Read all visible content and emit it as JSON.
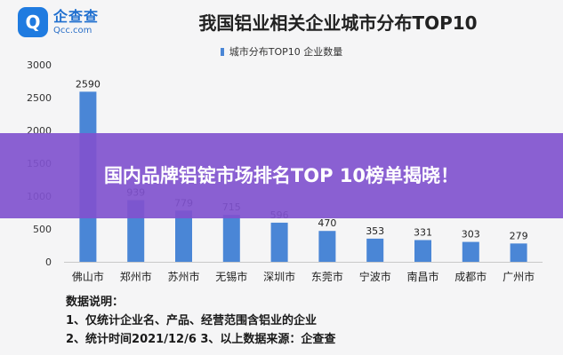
{
  "logo": {
    "name_cn": "企查查",
    "name_en": "Qcc.com"
  },
  "chart_data": {
    "type": "bar",
    "title": "我国铝业相关企业城市分布TOP10",
    "categories": [
      "佛山市",
      "郑州市",
      "苏州市",
      "无锡市",
      "深圳市",
      "东莞市",
      "宁波市",
      "南昌市",
      "成都市",
      "广州市"
    ],
    "series": [
      {
        "name": "城市分布TOP10 企业数量",
        "values": [
          2590,
          939,
          779,
          715,
          596,
          470,
          353,
          331,
          303,
          279
        ]
      }
    ],
    "ylim": [
      0,
      3000
    ],
    "yticks": [
      "0",
      "500",
      "1000",
      "1500",
      "2000",
      "2500",
      "3000"
    ],
    "grid": false,
    "legend": "top-center",
    "bar_color": "#4a86d6"
  },
  "notes": {
    "heading": "数据说明：",
    "line1": "1、仅统计企业名、产品、经营范围含铝业的企业",
    "line2": "2、统计时间2021/12/6   3、以上数据来源：企查查"
  },
  "banner": {
    "text": "国内品牌铝锭市场排名TOP 10榜单揭晓！"
  }
}
